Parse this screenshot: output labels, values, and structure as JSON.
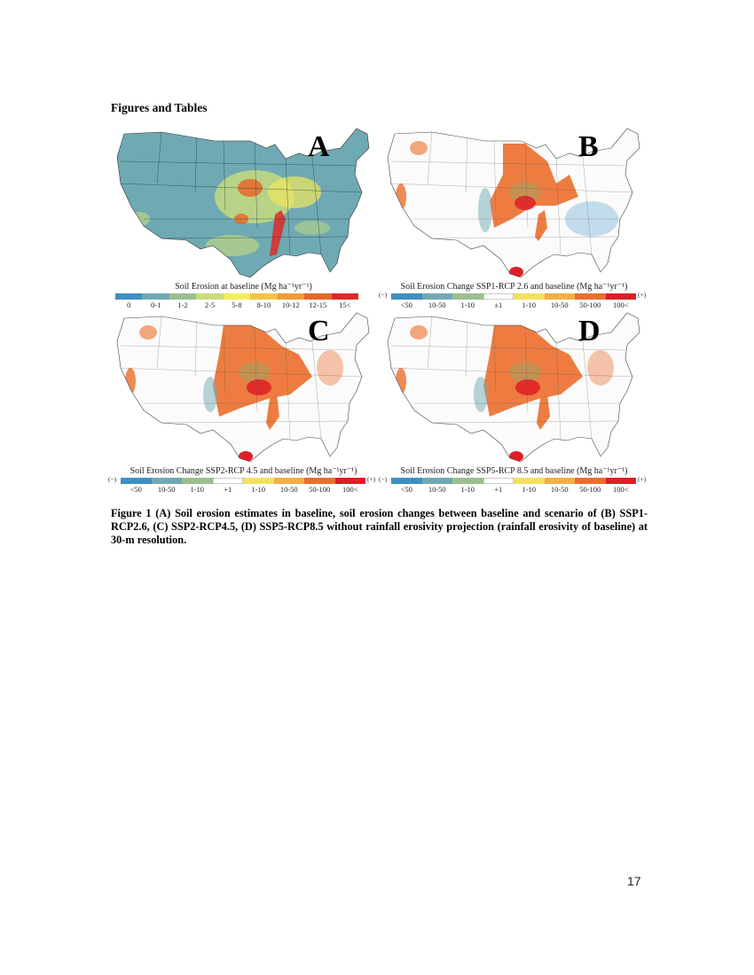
{
  "page": {
    "heading": "Figures and Tables",
    "page_number": "17"
  },
  "figure": {
    "caption": "Figure 1 (A) Soil erosion estimates in baseline, soil erosion changes between baseline and scenario of (B) SSP1-RCP2.6, (C) SSP2-RCP4.5, (D) SSP5-RCP8.5 without rainfall erosivity projection (rainfall erosivity of baseline) at 30-m resolution.",
    "panels": [
      {
        "letter": "A",
        "legend_title": "Soil Erosion at baseline (Mg ha⁻¹yr⁻¹)",
        "legend_colors": [
          "#3d8fc4",
          "#6fa9b4",
          "#9bbf8f",
          "#c9dd7a",
          "#f3ef5c",
          "#f5c444",
          "#f09a35",
          "#e8652a",
          "#de2a26"
        ],
        "legend_ticks": [
          "0",
          "0-1",
          "1-2",
          "2-5",
          "5-8",
          "8-10",
          "10-12",
          "12-15",
          "15<"
        ],
        "end_left": "",
        "end_right": "",
        "map_style": "baseline"
      },
      {
        "letter": "B",
        "legend_title": "Soil Erosion Change SSP1-RCP 2.6 and baseline (Mg ha⁻¹yr⁻¹)",
        "legend_colors": [
          "#3d8fc4",
          "#6fa9b4",
          "#9bbf8f",
          "#ffffff",
          "#f3e05c",
          "#f5ae44",
          "#ec6e2c",
          "#de1f26"
        ],
        "legend_ticks": [
          "<50",
          "10-50",
          "1-10",
          "±1",
          "1-10",
          "10-50",
          "50-100",
          "100<"
        ],
        "end_left": "(−)",
        "end_right": "(+)",
        "map_style": "change"
      },
      {
        "letter": "C",
        "legend_title": "Soil Erosion Change SSP2-RCP 4.5 and baseline (Mg ha⁻¹yr⁻¹)",
        "legend_colors": [
          "#3d8fc4",
          "#6fa9b4",
          "#9bbf8f",
          "#ffffff",
          "#f3e05c",
          "#f5ae44",
          "#ec6e2c",
          "#de1f26"
        ],
        "legend_ticks": [
          "<50",
          "10-50",
          "1-10",
          "+1",
          "1-10",
          "10-50",
          "50-100",
          "100<"
        ],
        "end_left": "(−)",
        "end_right": "(+)",
        "map_style": "change"
      },
      {
        "letter": "D",
        "legend_title": "Soil Erosion Change SSP5-RCP 8.5 and baseline (Mg ha⁻¹yr⁻¹)",
        "legend_colors": [
          "#3d8fc4",
          "#6fa9b4",
          "#9bbf8f",
          "#ffffff",
          "#f3e05c",
          "#f5ae44",
          "#ec6e2c",
          "#de1f26"
        ],
        "legend_ticks": [
          "<50",
          "10-50",
          "1-10",
          "+1",
          "1-10",
          "10-50",
          "50-100",
          "100<"
        ],
        "end_left": "(−)",
        "end_right": "(+)",
        "map_style": "change"
      }
    ]
  },
  "chart_data": [
    {
      "type": "heatmap",
      "title": "Soil Erosion at baseline (Mg ha-1yr-1)",
      "panel": "A",
      "legend_categories": [
        "0",
        "0-1",
        "1-2",
        "2-5",
        "5-8",
        "8-10",
        "10-12",
        "12-15",
        "15<"
      ],
      "legend_colors": [
        "#3d8fc4",
        "#6fa9b4",
        "#9bbf8f",
        "#c9dd7a",
        "#f3ef5c",
        "#f5c444",
        "#f09a35",
        "#e8652a",
        "#de2a26"
      ],
      "region": "Contiguous United States"
    },
    {
      "type": "heatmap",
      "title": "Soil Erosion Change SSP1-RCP 2.6 and baseline (Mg ha-1yr-1)",
      "panel": "B",
      "legend_categories": [
        "<50",
        "10-50",
        "1-10",
        "±1",
        "1-10",
        "10-50",
        "50-100",
        "100<"
      ],
      "legend_direction": [
        "(−)",
        "(+)"
      ],
      "region": "Contiguous United States"
    },
    {
      "type": "heatmap",
      "title": "Soil Erosion Change SSP2-RCP 4.5 and baseline (Mg ha-1yr-1)",
      "panel": "C",
      "legend_categories": [
        "<50",
        "10-50",
        "1-10",
        "+1",
        "1-10",
        "10-50",
        "50-100",
        "100<"
      ],
      "legend_direction": [
        "(−)",
        "(+)"
      ],
      "region": "Contiguous United States"
    },
    {
      "type": "heatmap",
      "title": "Soil Erosion Change SSP5-RCP 8.5 and baseline (Mg ha-1yr-1)",
      "panel": "D",
      "legend_categories": [
        "<50",
        "10-50",
        "1-10",
        "+1",
        "1-10",
        "10-50",
        "50-100",
        "100<"
      ],
      "legend_direction": [
        "(−)",
        "(+)"
      ],
      "region": "Contiguous United States"
    }
  ]
}
